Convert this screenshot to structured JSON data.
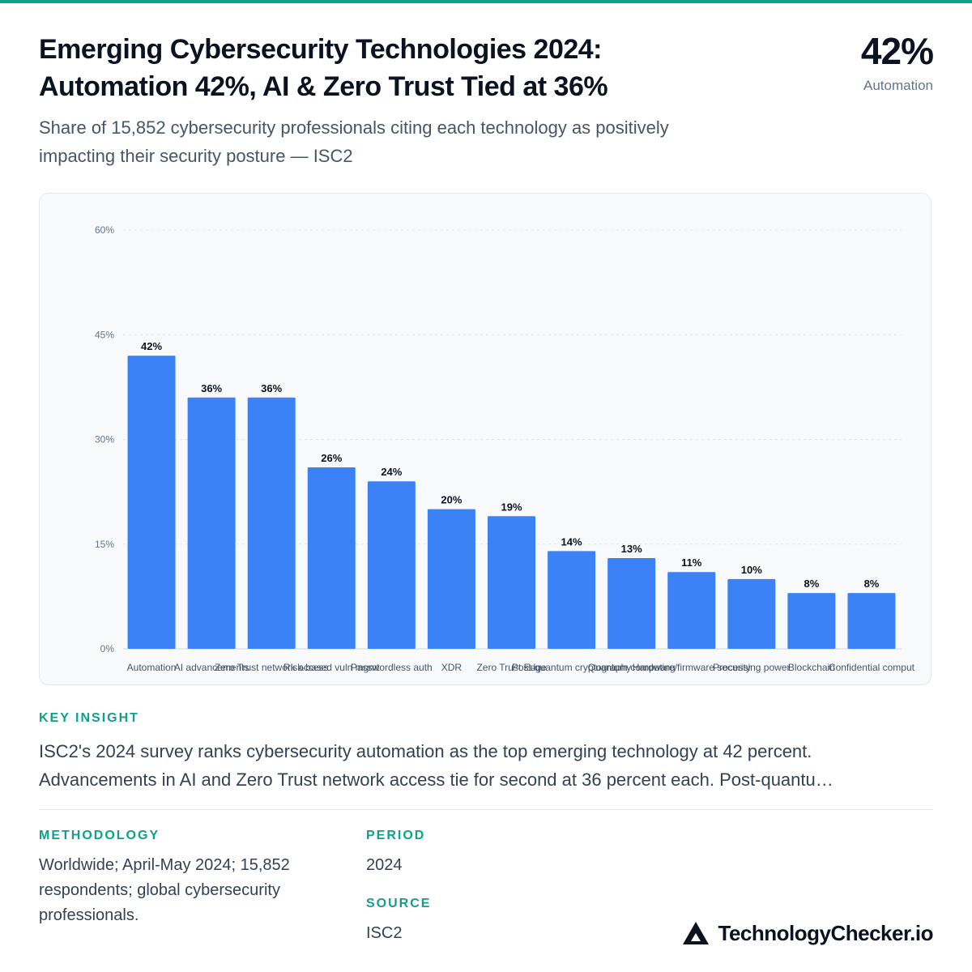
{
  "header": {
    "title_line1": "Emerging Cybersecurity Technologies 2024:",
    "title_line2": "Automation 42%, AI & Zero Trust Tied at 36%",
    "subtitle_line1": "Share of 15,852 cybersecurity professionals citing each technology as positively",
    "subtitle_line2": "impacting their security posture — ISC2",
    "kpi_value": "42%",
    "kpi_label": "Automation"
  },
  "chart_data": {
    "type": "bar",
    "categories": [
      "Automation",
      "AI advancements",
      "Zero Trust network access",
      "Risk-based vuln mgmt",
      "Passwordless auth",
      "XDR",
      "Zero Trust Edge",
      "Post-quantum cryptography",
      "Quantum computing",
      "Hardware/firmware security",
      "Processing power",
      "Blockchain",
      "Confidential comput"
    ],
    "values": [
      42,
      36,
      36,
      26,
      24,
      20,
      19,
      14,
      13,
      11,
      10,
      8,
      8
    ],
    "value_labels": [
      "42%",
      "36%",
      "36%",
      "26%",
      "24%",
      "20%",
      "19%",
      "14%",
      "13%",
      "11%",
      "10%",
      "8%",
      "8%"
    ],
    "yticks": [
      0,
      15,
      30,
      45,
      60
    ],
    "ytick_labels": [
      "0%",
      "15%",
      "30%",
      "45%",
      "60%"
    ],
    "ylim": [
      0,
      60
    ],
    "grid": true,
    "bar_color": "#3b82f6"
  },
  "insight": {
    "label": "KEY INSIGHT",
    "line1": "ISC2's 2024 survey ranks cybersecurity automation as the top emerging technology at 42 percent.",
    "line2": "Advancements in AI and Zero Trust network access tie for second at 36 percent each. Post-quantu…"
  },
  "methodology": {
    "label": "METHODOLOGY",
    "line1": "Worldwide; April-May 2024; 15,852",
    "line2": "respondents; global cybersecurity",
    "line3": "professionals."
  },
  "period": {
    "label": "PERIOD",
    "value": "2024"
  },
  "source": {
    "label": "SOURCE",
    "value": "ISC2"
  },
  "brand": {
    "name": "TechnologyChecker.io",
    "icon": "triangle-logo-icon"
  },
  "colors": {
    "accent": "#10a08a",
    "bar": "#3b82f6",
    "text": "#0b1220"
  }
}
